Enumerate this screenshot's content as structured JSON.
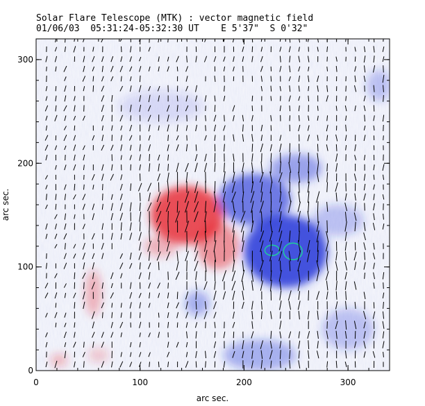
{
  "header": {
    "title": "Solar Flare Telescope (MTK) : vector magnetic field",
    "subtitle": "01/06/03  05:31:24-05:32:30 UT    E 5'37\"  S 0'32\""
  },
  "chart_data": {
    "type": "heatmap",
    "title": "Solar Flare Telescope (MTK) : vector magnetic field",
    "xlabel": "arc sec.",
    "ylabel": "arc sec.",
    "xlim": [
      0,
      340
    ],
    "ylim": [
      0,
      320
    ],
    "xticks": [
      0,
      100,
      200,
      300
    ],
    "yticks": [
      0,
      100,
      200,
      300
    ],
    "colors": {
      "positive": "#e8262e",
      "negative": "#2336d8",
      "contour": "#1fcf99",
      "axis": "#000000"
    },
    "positive_regions": [
      {
        "name": "main-positive-spot",
        "cx": 145,
        "cy": 150,
        "rx": 35,
        "ry": 28,
        "strength": 0.95
      },
      {
        "name": "positive-tail",
        "cx": 175,
        "cy": 120,
        "rx": 20,
        "ry": 22,
        "strength": 0.55
      },
      {
        "name": "positive-patch-1",
        "cx": 120,
        "cy": 120,
        "rx": 16,
        "ry": 10,
        "strength": 0.35
      },
      {
        "name": "positive-patch-2",
        "cx": 55,
        "cy": 75,
        "rx": 8,
        "ry": 22,
        "strength": 0.35
      },
      {
        "name": "positive-patch-3",
        "cx": 22,
        "cy": 10,
        "rx": 8,
        "ry": 6,
        "strength": 0.35
      },
      {
        "name": "positive-patch-4",
        "cx": 60,
        "cy": 15,
        "rx": 10,
        "ry": 7,
        "strength": 0.25
      }
    ],
    "negative_regions": [
      {
        "name": "main-negative-spot",
        "cx": 240,
        "cy": 115,
        "rx": 40,
        "ry": 35,
        "strength": 1.0
      },
      {
        "name": "negative-north",
        "cx": 210,
        "cy": 165,
        "rx": 35,
        "ry": 25,
        "strength": 0.75
      },
      {
        "name": "negative-ridge",
        "cx": 250,
        "cy": 195,
        "rx": 25,
        "ry": 14,
        "strength": 0.5
      },
      {
        "name": "negative-south",
        "cx": 215,
        "cy": 15,
        "rx": 35,
        "ry": 15,
        "strength": 0.4
      },
      {
        "name": "negative-patch-1",
        "cx": 155,
        "cy": 65,
        "rx": 12,
        "ry": 12,
        "strength": 0.4
      },
      {
        "name": "negative-patch-2",
        "cx": 290,
        "cy": 145,
        "rx": 25,
        "ry": 15,
        "strength": 0.3
      },
      {
        "name": "negative-patch-3",
        "cx": 120,
        "cy": 255,
        "rx": 40,
        "ry": 15,
        "strength": 0.15
      },
      {
        "name": "negative-patch-4",
        "cx": 300,
        "cy": 40,
        "rx": 25,
        "ry": 20,
        "strength": 0.3
      },
      {
        "name": "negative-patch-5",
        "cx": 330,
        "cy": 275,
        "rx": 12,
        "ry": 15,
        "strength": 0.3
      }
    ],
    "contours": [
      {
        "name": "contour-1",
        "cx": 227,
        "cy": 116,
        "rx": 7,
        "ry": 5
      },
      {
        "name": "contour-2",
        "cx": 247,
        "cy": 115,
        "rx": 9,
        "ry": 8
      }
    ],
    "vector_grid": {
      "x_start": 10,
      "x_step": 9,
      "y_start": 6,
      "y_step": 9.5,
      "field_region_x": [
        5,
        340
      ],
      "field_region_y": [
        0,
        320
      ]
    }
  }
}
